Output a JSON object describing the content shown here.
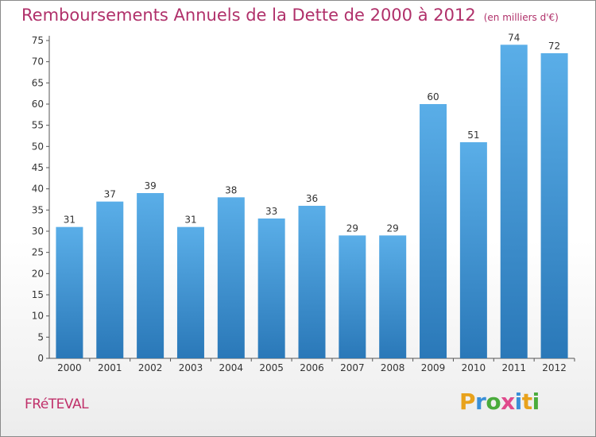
{
  "title": "Remboursements Annuels de la Dette de 2000 à 2012",
  "subtitle": "(en milliers d'€)",
  "commune": "FRéTEVAL",
  "logo": {
    "letters": [
      "P",
      "r",
      "o",
      "x",
      "i",
      "t",
      "i"
    ],
    "colors": [
      "#e8a21c",
      "#3a8fd8",
      "#4aab3c",
      "#e04a8c",
      "#3a8fd8",
      "#e8a21c",
      "#4aab3c"
    ]
  },
  "chart_data": {
    "type": "bar",
    "categories": [
      "2000",
      "2001",
      "2002",
      "2003",
      "2004",
      "2005",
      "2006",
      "2007",
      "2008",
      "2009",
      "2010",
      "2011",
      "2012"
    ],
    "values": [
      31,
      37,
      39,
      31,
      38,
      33,
      36,
      29,
      29,
      60,
      51,
      74,
      72
    ],
    "data_labels": [
      "31",
      "37",
      "39",
      "31",
      "38",
      "33",
      "36",
      "29",
      "29",
      "60",
      "51",
      "74",
      "72"
    ],
    "title": "Remboursements Annuels de la Dette de 2000 à 2012",
    "ylim": [
      0,
      75
    ],
    "yticks": [
      0,
      5,
      10,
      15,
      20,
      25,
      30,
      35,
      40,
      45,
      50,
      55,
      60,
      65,
      70,
      75
    ],
    "ytick_labels": [
      "0",
      "5",
      "10",
      "15",
      "20",
      "25",
      "30",
      "35",
      "40",
      "45",
      "50",
      "55",
      "60",
      "65",
      "70",
      "75"
    ],
    "grid": false,
    "bar_color_top": "#5aaee8",
    "bar_color_bottom": "#2a78b8"
  }
}
